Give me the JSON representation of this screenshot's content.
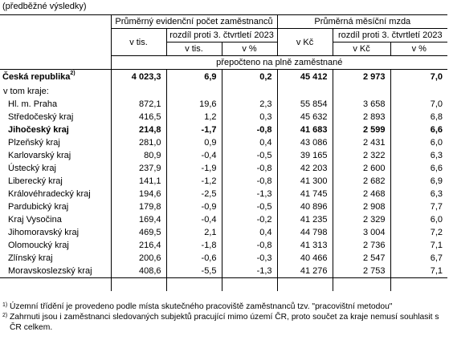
{
  "top_note": "(předběžné výsledky)",
  "header": {
    "group1": "Průměrný evidenční počet zaměstnanců",
    "group2": "Průměrná měsíční mzda",
    "unit1": "v tis.",
    "diff1": "rozdíl proti 3. čtvrtletí 2023",
    "unit2": "v Kč",
    "diff2": "rozdíl proti 3. čtvrtletí 2023",
    "sub1a": "v tis.",
    "sub1b": "v %",
    "sub2a": "v Kč",
    "sub2b": "v %",
    "span_note": "přepočteno na plně zaměstnané"
  },
  "total": {
    "label": "Česká republika",
    "sup": "2)",
    "values": [
      "4 023,3",
      "6,9",
      "0,2",
      "45 412",
      "2 973",
      "7,0"
    ]
  },
  "section_label": "v tom kraje:",
  "rows": [
    {
      "label": "Hl. m. Praha",
      "bold": false,
      "values": [
        "872,1",
        "19,6",
        "2,3",
        "55 854",
        "3 658",
        "7,0"
      ]
    },
    {
      "label": "Středočeský kraj",
      "bold": false,
      "values": [
        "416,5",
        "1,2",
        "0,3",
        "45 632",
        "2 893",
        "6,8"
      ]
    },
    {
      "label": "Jihočeský kraj",
      "bold": true,
      "values": [
        "214,8",
        "-1,7",
        "-0,8",
        "41 683",
        "2 599",
        "6,6"
      ]
    },
    {
      "label": "Plzeňský kraj",
      "bold": false,
      "values": [
        "281,0",
        "0,9",
        "0,4",
        "43 086",
        "2 431",
        "6,0"
      ]
    },
    {
      "label": "Karlovarský kraj",
      "bold": false,
      "values": [
        "80,9",
        "-0,4",
        "-0,5",
        "39 165",
        "2 322",
        "6,3"
      ]
    },
    {
      "label": "Ústecký kraj",
      "bold": false,
      "values": [
        "237,9",
        "-1,9",
        "-0,8",
        "42 203",
        "2 600",
        "6,6"
      ]
    },
    {
      "label": "Liberecký kraj",
      "bold": false,
      "values": [
        "141,1",
        "-1,2",
        "-0,8",
        "41 300",
        "2 682",
        "6,9"
      ]
    },
    {
      "label": "Královéhradecký kraj",
      "bold": false,
      "values": [
        "194,6",
        "-2,5",
        "-1,3",
        "41 745",
        "2 468",
        "6,3"
      ]
    },
    {
      "label": "Pardubický kraj",
      "bold": false,
      "values": [
        "179,8",
        "-0,9",
        "-0,5",
        "40 896",
        "2 908",
        "7,7"
      ]
    },
    {
      "label": "Kraj Vysočina",
      "bold": false,
      "values": [
        "169,4",
        "-0,4",
        "-0,2",
        "41 235",
        "2 329",
        "6,0"
      ]
    },
    {
      "label": "Jihomoravský kraj",
      "bold": false,
      "values": [
        "469,5",
        "2,1",
        "0,4",
        "44 798",
        "3 004",
        "7,2"
      ]
    },
    {
      "label": "Olomoucký kraj",
      "bold": false,
      "values": [
        "216,4",
        "-1,8",
        "-0,8",
        "41 313",
        "2 736",
        "7,1"
      ]
    },
    {
      "label": "Zlínský kraj",
      "bold": false,
      "values": [
        "200,6",
        "-0,6",
        "-0,3",
        "40 466",
        "2 547",
        "6,7"
      ]
    },
    {
      "label": "Moravskoslezský kraj",
      "bold": false,
      "values": [
        "408,6",
        "-5,5",
        "-1,3",
        "41 276",
        "2 753",
        "7,1"
      ]
    }
  ],
  "footnotes": [
    {
      "mark": "1)",
      "text": "Územní třídění je provedeno podle místa skutečného pracoviště zaměstnanců tzv. \"pracovištní metodou\""
    },
    {
      "mark": "2)",
      "text": "Zahrnuti jsou i zaměstnanci sledovaných subjektů pracující mimo území ČR, proto součet za kraje nemusí souhlasit s ČR celkem."
    }
  ]
}
